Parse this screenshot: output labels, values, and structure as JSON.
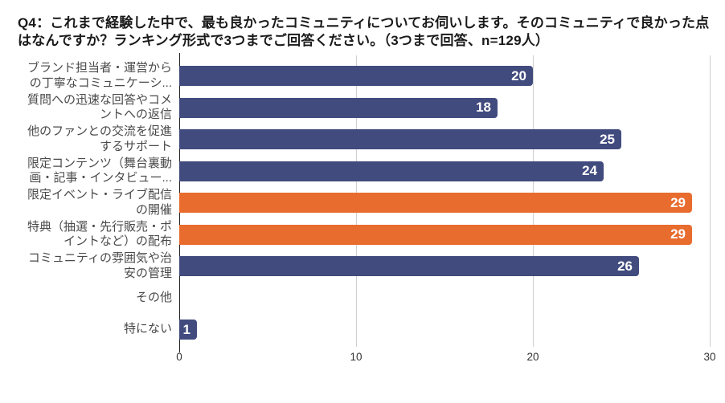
{
  "title": "Q4：これまで経験した中で、最も良かったコミュニティについてお伺いします。そのコミュニティで良かった点はなんですか？ランキング形式で3つまでご回答ください。（3つまで回答、n=129人）",
  "colors": {
    "bar_primary": "#414B7E",
    "bar_highlight": "#E86C2E",
    "gridline": "#CFCFCF",
    "axis_line": "#222222",
    "value_label": "#FFFFFF",
    "category_label": "#4A4A4A",
    "tick_label": "#333333"
  },
  "chart_data": {
    "type": "bar",
    "orientation": "horizontal",
    "title": "Q4：これまで経験した中で、最も良かったコミュニティについてお伺いします。そのコミュニティで良かった点はなんですか？ランキング形式で3つまでご回答ください。（3つまで回答、n=129人）",
    "n": 129,
    "categories": [
      "ブランド担当者・運営から\nの丁寧なコミュニケーシ...",
      "質問への迅速な回答やコメ\nントへの返信",
      "他のファンとの交流を促進\nするサポート",
      "限定コンテンツ（舞台裏動\n画・記事・インタビュー...",
      "限定イベント・ライブ配信\nの開催",
      "特典（抽選・先行販売・ポ\nイントなど）の配布",
      "コミュニティの雰囲気や治\n安の管理",
      "その他",
      "特にない"
    ],
    "values": [
      20,
      18,
      25,
      24,
      29,
      29,
      26,
      0,
      1
    ],
    "highlighted_indices": [
      4,
      5
    ],
    "xlabel": "",
    "ylabel": "",
    "xlim": [
      0,
      30
    ],
    "xticks": [
      0,
      10,
      20,
      30
    ],
    "grid": true,
    "legend": false,
    "value_labels_position": "inside-end"
  }
}
